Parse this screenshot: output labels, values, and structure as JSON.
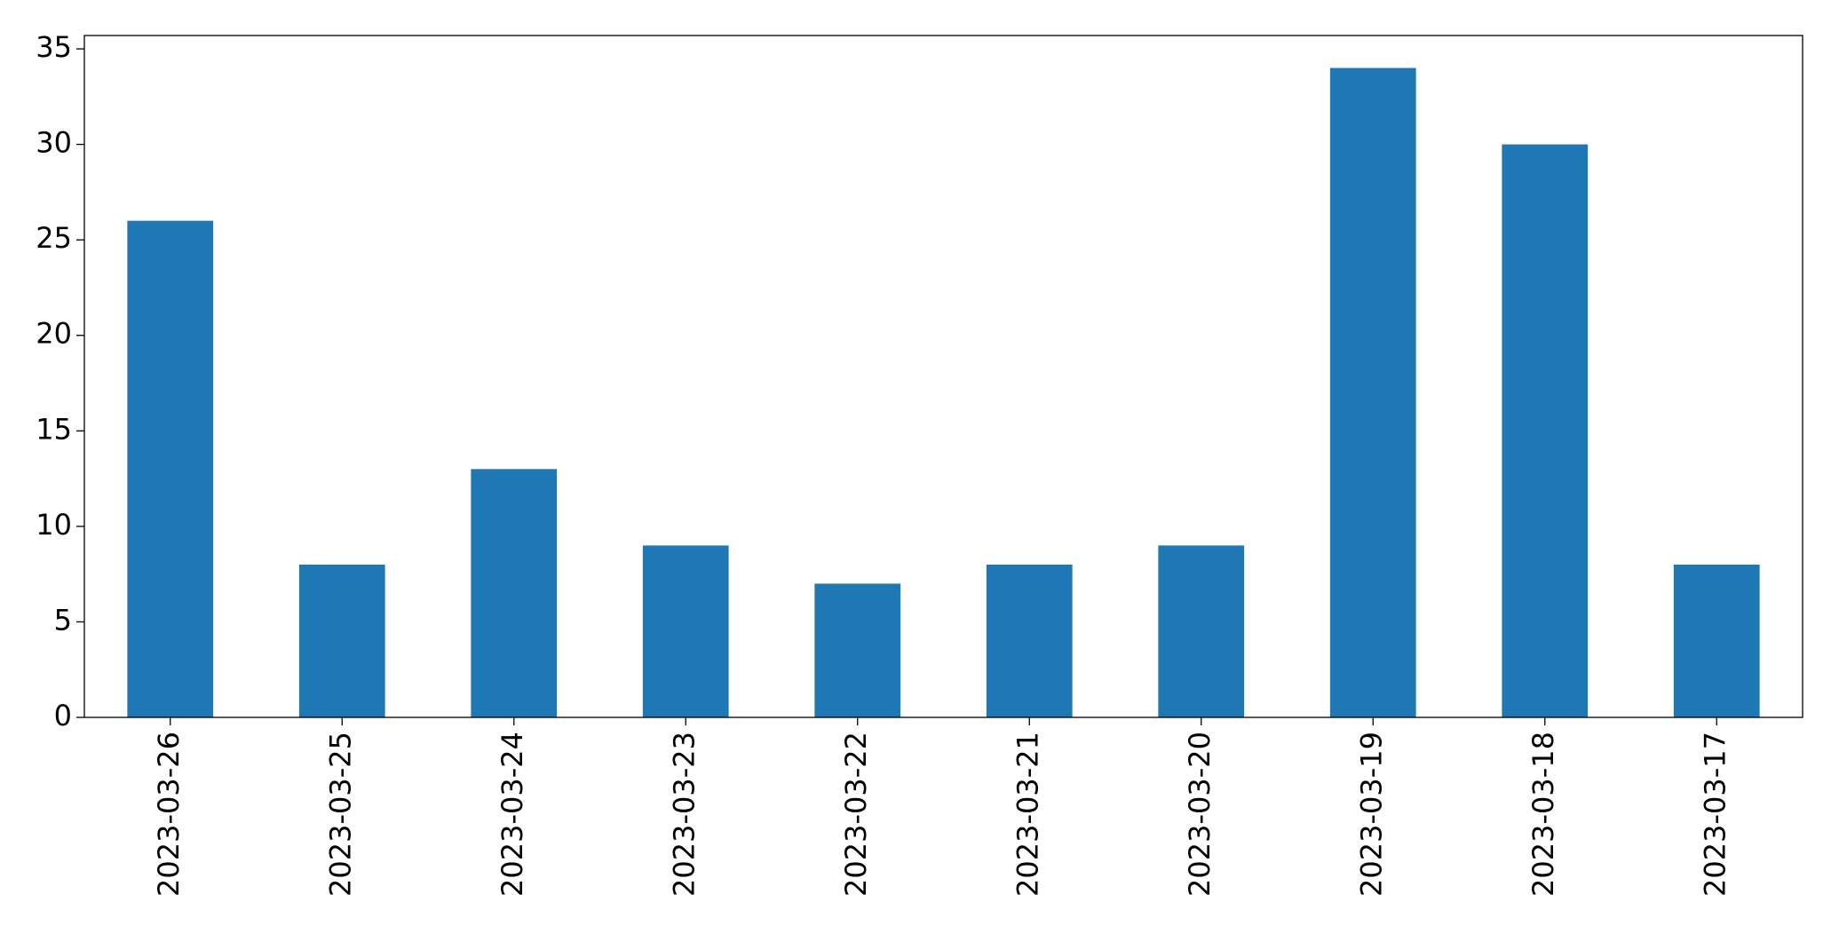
{
  "chart_data": {
    "type": "bar",
    "categories": [
      "2023-03-26",
      "2023-03-25",
      "2023-03-24",
      "2023-03-23",
      "2023-03-22",
      "2023-03-21",
      "2023-03-20",
      "2023-03-19",
      "2023-03-18",
      "2023-03-17"
    ],
    "values": [
      26,
      8,
      13,
      9,
      7,
      8,
      9,
      34,
      30,
      8
    ],
    "color": "#1f77b4",
    "ylim": [
      0,
      35.7
    ],
    "yticks": [
      0,
      5,
      10,
      15,
      20,
      25,
      30,
      35
    ],
    "grid": false
  }
}
